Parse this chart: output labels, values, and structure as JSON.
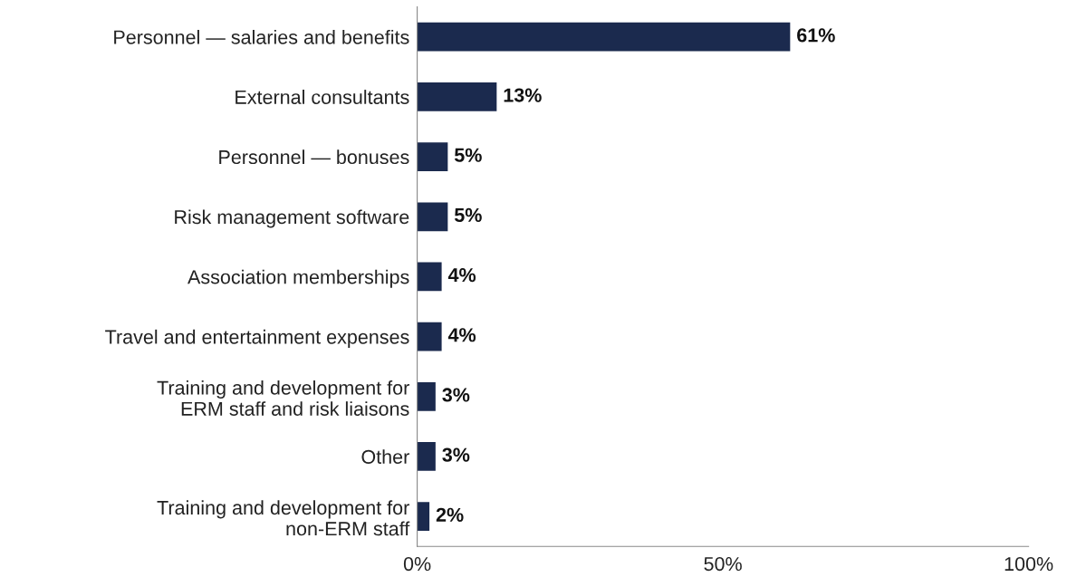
{
  "chart_data": {
    "type": "bar",
    "orientation": "horizontal",
    "categories": [
      "Personnel — salaries and benefits",
      "External consultants",
      "Personnel — bonuses",
      "Risk management software",
      "Association memberships",
      "Travel and entertainment expenses",
      "Training and development for\nERM staff and risk liaisons",
      "Other",
      "Training and development for\nnon-ERM staff"
    ],
    "values": [
      61,
      13,
      5,
      5,
      4,
      4,
      3,
      3,
      2
    ],
    "value_labels": [
      "61%",
      "13%",
      "5%",
      "5%",
      "4%",
      "4%",
      "3%",
      "3%",
      "2%"
    ],
    "color": "#1b2a4e",
    "xlim": [
      0,
      100
    ],
    "xticks": [
      {
        "value": 0,
        "label": "0%"
      },
      {
        "value": 50,
        "label": "50%"
      },
      {
        "value": 100,
        "label": "100%"
      }
    ],
    "grid": false,
    "legend": false
  }
}
